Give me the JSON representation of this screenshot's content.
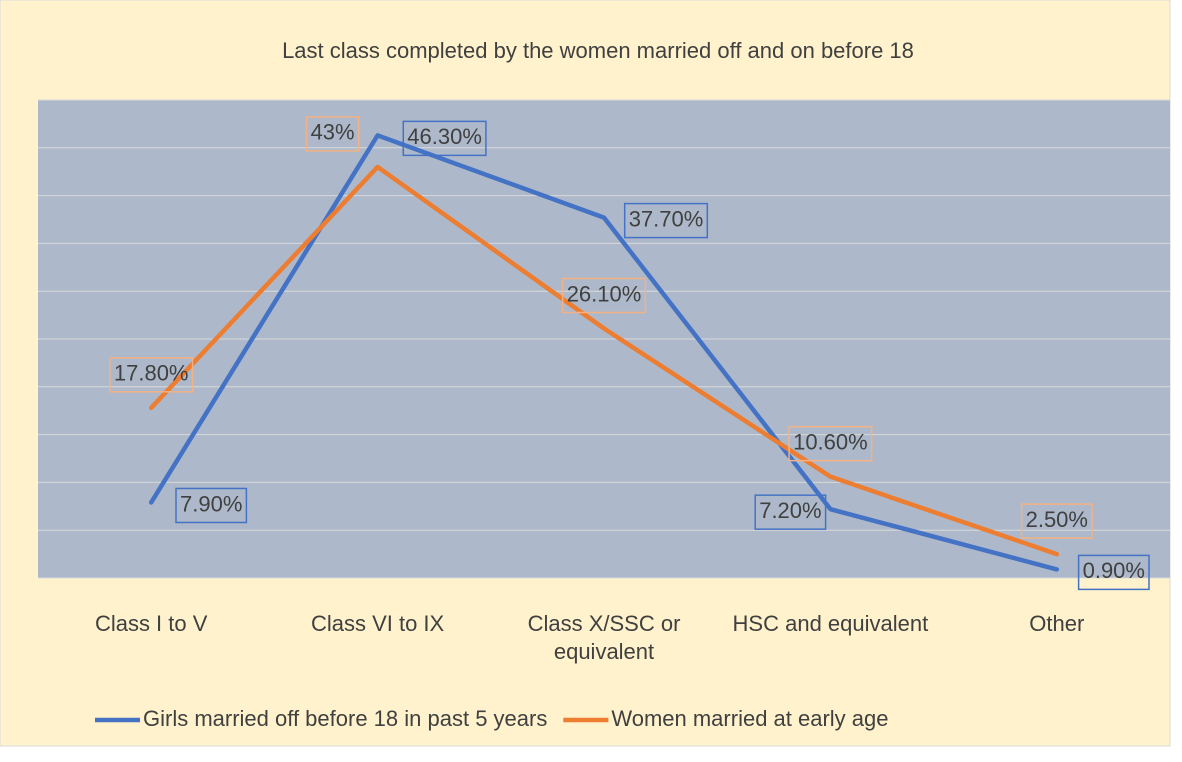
{
  "chart_data": {
    "type": "line",
    "title": "Last class completed by the women married off and on before 18",
    "categories": [
      "Class I to V",
      "Class VI to IX",
      "Class X/SSC or equivalent",
      "HSC and equivalent",
      "Other"
    ],
    "series": [
      {
        "name": "Girls married off before 18 in past 5 years",
        "color": "#4472c4",
        "values": [
          7.9,
          46.3,
          37.7,
          7.2,
          0.9
        ],
        "value_labels": [
          "7.90%",
          "46.30%",
          "37.70%",
          "7.20%",
          "0.90%"
        ]
      },
      {
        "name": "Women married at early age",
        "color": "#ed7d31",
        "values": [
          17.8,
          43,
          26.1,
          10.6,
          2.5
        ],
        "value_labels": [
          "17.80%",
          "43%",
          "26.10%",
          "10.60%",
          "2.50%"
        ]
      }
    ],
    "ylim": [
      0,
      50
    ],
    "yticks": [
      0,
      5,
      10,
      15,
      20,
      25,
      30,
      35,
      40,
      45,
      50
    ],
    "grid": true,
    "legend": "bottom"
  }
}
